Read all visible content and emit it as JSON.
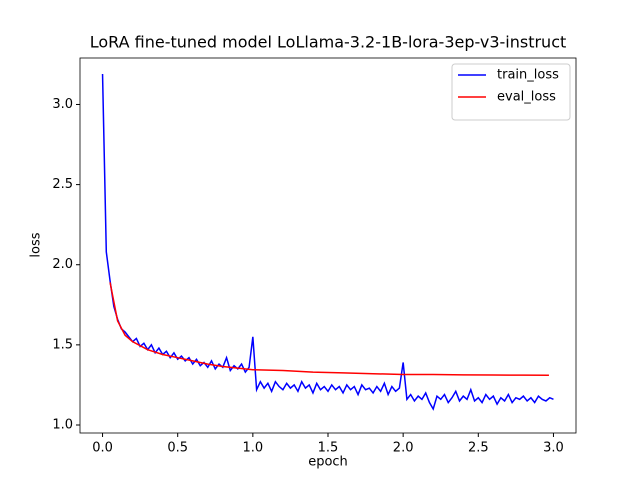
{
  "chart_data": {
    "type": "line",
    "title": "LoRA fine-tuned model LoLlama-3.2-1B-lora-3ep-v3-instruct",
    "xlabel": "epoch",
    "ylabel": "loss",
    "xlim": [
      -0.15,
      3.15
    ],
    "ylim": [
      0.95,
      3.29
    ],
    "xticks": [
      {
        "value": 0,
        "label": "0.0"
      },
      0.5,
      {
        "value": 1,
        "label": "1.0"
      },
      1.5,
      {
        "value": 2,
        "label": "2.0"
      },
      2.5,
      {
        "value": 3,
        "label": "3.0"
      }
    ],
    "yticks": [
      {
        "value": 1,
        "label": "1.0"
      },
      1.5,
      {
        "value": 2,
        "label": "2.0"
      },
      2.5,
      {
        "value": 3,
        "label": "3.0"
      }
    ],
    "legend": "upper right",
    "series": [
      {
        "name": "train_loss",
        "color": "#0000ff",
        "x": [
          0,
          0.025,
          0.05,
          0.075,
          0.1,
          0.125,
          0.15,
          0.175,
          0.2,
          0.225,
          0.25,
          0.275,
          0.3,
          0.325,
          0.35,
          0.375,
          0.4,
          0.425,
          0.45,
          0.475,
          0.5,
          0.525,
          0.55,
          0.575,
          0.6,
          0.625,
          0.65,
          0.675,
          0.7,
          0.725,
          0.75,
          0.775,
          0.8,
          0.825,
          0.85,
          0.875,
          0.9,
          0.925,
          0.95,
          0.975,
          1,
          1.025,
          1.05,
          1.075,
          1.1,
          1.125,
          1.15,
          1.175,
          1.2,
          1.225,
          1.25,
          1.275,
          1.3,
          1.325,
          1.35,
          1.375,
          1.4,
          1.425,
          1.45,
          1.475,
          1.5,
          1.525,
          1.55,
          1.575,
          1.6,
          1.625,
          1.65,
          1.675,
          1.7,
          1.725,
          1.75,
          1.775,
          1.8,
          1.825,
          1.85,
          1.875,
          1.9,
          1.925,
          1.95,
          1.975,
          2,
          2.025,
          2.05,
          2.075,
          2.1,
          2.125,
          2.15,
          2.175,
          2.2,
          2.225,
          2.25,
          2.275,
          2.3,
          2.325,
          2.35,
          2.375,
          2.4,
          2.425,
          2.45,
          2.475,
          2.5,
          2.525,
          2.55,
          2.575,
          2.6,
          2.625,
          2.65,
          2.675,
          2.7,
          2.725,
          2.75,
          2.775,
          2.8,
          2.825,
          2.85,
          2.875,
          2.9,
          2.925,
          2.95,
          2.975,
          3
        ],
        "values": [
          3.19,
          2.08,
          1.9,
          1.74,
          1.66,
          1.6,
          1.58,
          1.55,
          1.52,
          1.54,
          1.49,
          1.51,
          1.47,
          1.5,
          1.45,
          1.48,
          1.44,
          1.46,
          1.42,
          1.45,
          1.41,
          1.43,
          1.4,
          1.42,
          1.38,
          1.41,
          1.37,
          1.39,
          1.36,
          1.4,
          1.35,
          1.38,
          1.36,
          1.42,
          1.34,
          1.37,
          1.35,
          1.38,
          1.33,
          1.36,
          1.55,
          1.22,
          1.27,
          1.23,
          1.26,
          1.21,
          1.27,
          1.24,
          1.22,
          1.26,
          1.23,
          1.25,
          1.21,
          1.27,
          1.23,
          1.25,
          1.2,
          1.26,
          1.22,
          1.24,
          1.21,
          1.25,
          1.22,
          1.24,
          1.2,
          1.25,
          1.22,
          1.24,
          1.19,
          1.25,
          1.22,
          1.23,
          1.2,
          1.24,
          1.21,
          1.26,
          1.19,
          1.24,
          1.21,
          1.23,
          1.39,
          1.16,
          1.19,
          1.15,
          1.18,
          1.16,
          1.2,
          1.14,
          1.1,
          1.18,
          1.16,
          1.19,
          1.14,
          1.17,
          1.21,
          1.15,
          1.18,
          1.16,
          1.22,
          1.15,
          1.17,
          1.14,
          1.19,
          1.16,
          1.18,
          1.13,
          1.17,
          1.15,
          1.19,
          1.14,
          1.17,
          1.16,
          1.18,
          1.15,
          1.17,
          1.14,
          1.18,
          1.16,
          1.15,
          1.17,
          1.16
        ]
      },
      {
        "name": "eval_loss",
        "color": "#ff0000",
        "x": [
          0.05,
          0.1,
          0.15,
          0.2,
          0.3,
          0.4,
          0.5,
          0.6,
          0.7,
          0.8,
          0.9,
          1,
          1.2,
          1.4,
          1.6,
          1.8,
          2,
          2.2,
          2.4,
          2.6,
          2.8,
          2.97
        ],
        "values": [
          1.89,
          1.65,
          1.56,
          1.52,
          1.47,
          1.44,
          1.42,
          1.4,
          1.38,
          1.365,
          1.355,
          1.345,
          1.34,
          1.33,
          1.325,
          1.32,
          1.315,
          1.315,
          1.313,
          1.312,
          1.311,
          1.31
        ]
      }
    ]
  }
}
